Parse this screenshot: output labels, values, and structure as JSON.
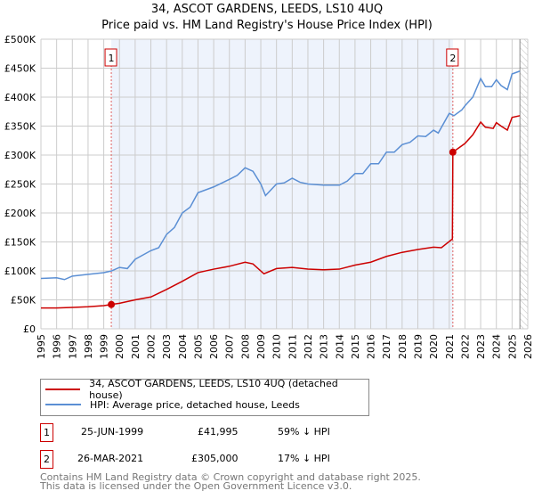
{
  "chart_data": {
    "type": "line",
    "title": "34, ASCOT GARDENS, LEEDS, LS10 4UQ",
    "subtitle": "Price paid vs. HM Land Registry's House Price Index (HPI)",
    "xlim": [
      1995,
      2026
    ],
    "ylim": [
      0,
      500000
    ],
    "x_ticks": [
      "1995",
      "1996",
      "1997",
      "1998",
      "1999",
      "2000",
      "2001",
      "2002",
      "2003",
      "2004",
      "2005",
      "2006",
      "2007",
      "2008",
      "2009",
      "2010",
      "2011",
      "2012",
      "2013",
      "2014",
      "2015",
      "2016",
      "2017",
      "2018",
      "2019",
      "2020",
      "2021",
      "2022",
      "2023",
      "2024",
      "2025",
      "2026"
    ],
    "y_ticks": [
      {
        "v": 0,
        "label": "£0"
      },
      {
        "v": 50000,
        "label": "£50K"
      },
      {
        "v": 100000,
        "label": "£100K"
      },
      {
        "v": 150000,
        "label": "£150K"
      },
      {
        "v": 200000,
        "label": "£200K"
      },
      {
        "v": 250000,
        "label": "£250K"
      },
      {
        "v": 300000,
        "label": "£300K"
      },
      {
        "v": 350000,
        "label": "£350K"
      },
      {
        "v": 400000,
        "label": "£400K"
      },
      {
        "v": 450000,
        "label": "£450K"
      },
      {
        "v": 500000,
        "label": "£500K"
      }
    ],
    "grid": true,
    "shaded_range": [
      1999.48,
      2021.23
    ],
    "hatched_from": 2025.5,
    "series": [
      {
        "name": "34, ASCOT GARDENS, LEEDS, LS10 4UQ (detached house)",
        "color": "#cc0000",
        "x": [
          1995,
          1996,
          1997,
          1998,
          1999,
          1999.48,
          2000,
          2001,
          2002,
          2003,
          2004,
          2005,
          2006,
          2007,
          2008,
          2008.5,
          2009.2,
          2010,
          2011,
          2012,
          2013,
          2014,
          2015,
          2016,
          2017,
          2018,
          2019,
          2020,
          2020.5,
          2021.2,
          2021.23,
          2022,
          2022.5,
          2023,
          2023.3,
          2023.8,
          2024,
          2024.3,
          2024.7,
          2025,
          2025.5
        ],
        "y": [
          36000,
          36000,
          37000,
          38000,
          40000,
          41995,
          44000,
          50000,
          55000,
          68000,
          82000,
          97000,
          103000,
          108000,
          115000,
          112000,
          95000,
          104000,
          106000,
          103000,
          102000,
          103000,
          110000,
          115000,
          125000,
          132000,
          137000,
          141000,
          140000,
          155000,
          305000,
          320000,
          335000,
          357000,
          348000,
          346000,
          356000,
          350000,
          343000,
          365000,
          368000
        ]
      },
      {
        "name": "HPI: Average price, detached house, Leeds",
        "color": "#5b8fd4",
        "x": [
          1995,
          1996,
          1996.5,
          1997,
          1998,
          1999,
          1999.5,
          2000,
          2000.5,
          2001,
          2002,
          2002.5,
          2003,
          2003.5,
          2004,
          2004.5,
          2005,
          2006,
          2007,
          2007.5,
          2008,
          2008.5,
          2009,
          2009.3,
          2010,
          2010.5,
          2011,
          2011.5,
          2012,
          2013,
          2014,
          2014.5,
          2015,
          2015.5,
          2016,
          2016.5,
          2017,
          2017.5,
          2018,
          2018.5,
          2019,
          2019.5,
          2020,
          2020.3,
          2021,
          2021.3,
          2021.8,
          2022,
          2022.5,
          2023,
          2023.3,
          2023.7,
          2024,
          2024.3,
          2024.7,
          2025,
          2025.5
        ],
        "y": [
          87000,
          88000,
          85000,
          91000,
          94000,
          97000,
          100000,
          106000,
          104000,
          120000,
          135000,
          140000,
          163000,
          175000,
          200000,
          210000,
          235000,
          245000,
          258000,
          265000,
          278000,
          272000,
          250000,
          230000,
          250000,
          252000,
          260000,
          253000,
          250000,
          248000,
          248000,
          255000,
          268000,
          268000,
          285000,
          285000,
          305000,
          305000,
          318000,
          322000,
          333000,
          332000,
          343000,
          338000,
          372000,
          368000,
          378000,
          385000,
          400000,
          432000,
          418000,
          418000,
          430000,
          420000,
          413000,
          440000,
          445000
        ]
      }
    ],
    "annotations": [
      {
        "label": "1",
        "x": 1999.48,
        "y": 41995
      },
      {
        "label": "2",
        "x": 2021.23,
        "y": 305000
      }
    ],
    "legend": {
      "placement": "bottom",
      "entries": [
        "34, ASCOT GARDENS, LEEDS, LS10 4UQ (detached house)",
        "HPI: Average price, detached house, Leeds"
      ]
    }
  },
  "header": {
    "title": "34, ASCOT GARDENS, LEEDS, LS10 4UQ",
    "subtitle": "Price paid vs. HM Land Registry's House Price Index (HPI)"
  },
  "transactions": [
    {
      "num": "1",
      "date": "25-JUN-1999",
      "price": "£41,995",
      "hpi": "59% ↓ HPI"
    },
    {
      "num": "2",
      "date": "26-MAR-2021",
      "price": "£305,000",
      "hpi": "17% ↓ HPI"
    }
  ],
  "footer": {
    "line1": "Contains HM Land Registry data © Crown copyright and database right 2025.",
    "line2": "This data is licensed under the Open Government Licence v3.0."
  }
}
